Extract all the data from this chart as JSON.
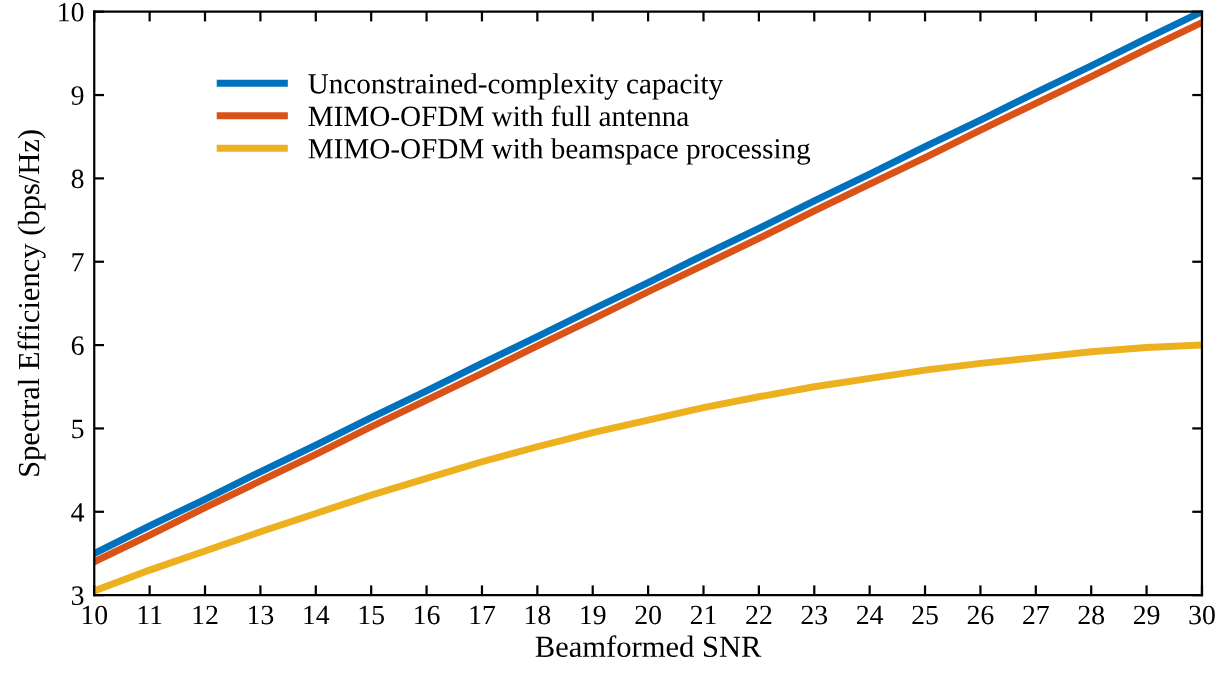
{
  "chart_data": {
    "type": "line",
    "xlabel": "Beamformed SNR",
    "ylabel": "Spectral Efficiency (bps/Hz)",
    "x": [
      10,
      11,
      12,
      13,
      14,
      15,
      16,
      17,
      18,
      19,
      20,
      21,
      22,
      23,
      24,
      25,
      26,
      27,
      28,
      29,
      30
    ],
    "series": [
      {
        "name": "Unconstrained-complexity capacity",
        "color": "#0072bd",
        "values": [
          3.5,
          3.83,
          4.15,
          4.48,
          4.8,
          5.13,
          5.45,
          5.78,
          6.1,
          6.43,
          6.75,
          7.08,
          7.4,
          7.73,
          8.05,
          8.38,
          8.7,
          9.03,
          9.35,
          9.68,
          10.0
        ]
      },
      {
        "name": "MIMO-OFDM with full antenna",
        "color": "#d95319",
        "values": [
          3.4,
          3.72,
          4.05,
          4.37,
          4.69,
          5.02,
          5.34,
          5.66,
          5.99,
          6.31,
          6.64,
          6.96,
          7.28,
          7.61,
          7.93,
          8.25,
          8.58,
          8.9,
          9.22,
          9.55,
          9.87
        ]
      },
      {
        "name": "MIMO-OFDM with beamspace processing",
        "color": "#edb120",
        "values": [
          3.05,
          3.3,
          3.53,
          3.76,
          3.98,
          4.2,
          4.4,
          4.6,
          4.78,
          4.95,
          5.1,
          5.25,
          5.38,
          5.5,
          5.6,
          5.7,
          5.78,
          5.85,
          5.92,
          5.97,
          6.0
        ]
      }
    ],
    "xlim": [
      10,
      30
    ],
    "xticks": [
      10,
      11,
      12,
      13,
      14,
      15,
      16,
      17,
      18,
      19,
      20,
      21,
      22,
      23,
      24,
      25,
      26,
      27,
      28,
      29,
      30
    ],
    "ylim": [
      3,
      10
    ],
    "yticks": [
      3,
      4,
      5,
      6,
      7,
      8,
      9,
      10
    ],
    "grid": false,
    "legend": "top left",
    "marker": "none",
    "line_style": "solid"
  }
}
